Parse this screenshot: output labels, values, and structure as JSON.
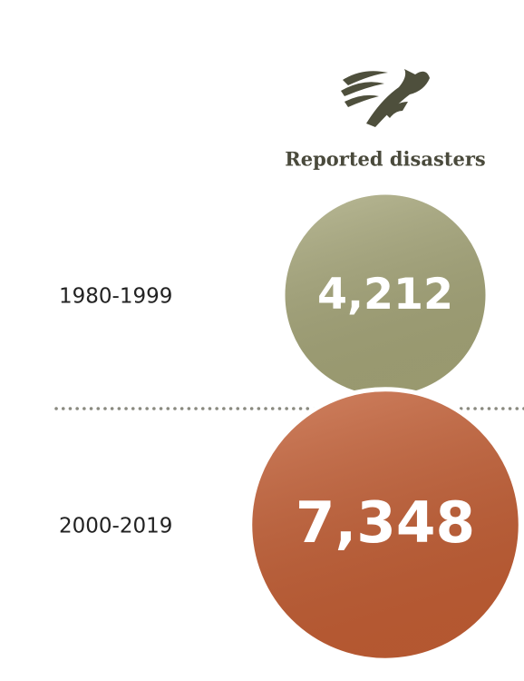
{
  "chart_data": {
    "type": "bubble",
    "title": "Reported disasters",
    "categories": [
      "1980-1999",
      "2000-2019"
    ],
    "values": [
      4212,
      7348
    ],
    "value_labels": [
      "4,212",
      "7,348"
    ],
    "colors": [
      "#a6a679",
      "#c45f35"
    ]
  }
}
